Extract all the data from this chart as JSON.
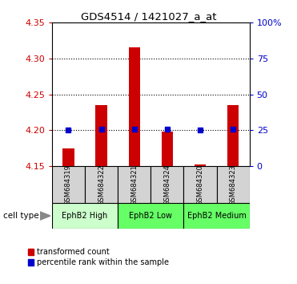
{
  "title": "GDS4514 / 1421027_a_at",
  "samples": [
    "GSM684319",
    "GSM684322",
    "GSM684321",
    "GSM684324",
    "GSM684320",
    "GSM684323"
  ],
  "transformed_counts": [
    4.175,
    4.235,
    4.316,
    4.198,
    4.152,
    4.235
  ],
  "percentile_ranks": [
    25,
    26,
    26,
    26,
    25,
    26
  ],
  "bar_bottom": 4.15,
  "ylim_left": [
    4.15,
    4.35
  ],
  "yticks_left": [
    4.15,
    4.2,
    4.25,
    4.3,
    4.35
  ],
  "ylim_right": [
    0,
    100
  ],
  "yticks_right": [
    0,
    25,
    50,
    75,
    100
  ],
  "ytick_labels_right": [
    "0",
    "25",
    "50",
    "75",
    "100%"
  ],
  "bar_color": "#cc0000",
  "percentile_color": "#0000cc",
  "group_info": [
    {
      "start": 0,
      "end": 2,
      "label": "EphB2 High",
      "color": "#ccffcc"
    },
    {
      "start": 2,
      "end": 4,
      "label": "EphB2 Low",
      "color": "#66ff66"
    },
    {
      "start": 4,
      "end": 6,
      "label": "EphB2 Medium",
      "color": "#66ff66"
    }
  ],
  "cell_type_label": "cell type",
  "legend_labels": [
    "transformed count",
    "percentile rank within the sample"
  ],
  "grid_color": "black",
  "sample_box_color": "#d3d3d3",
  "left_tick_color": "#cc0000",
  "right_tick_color": "#0000cc"
}
